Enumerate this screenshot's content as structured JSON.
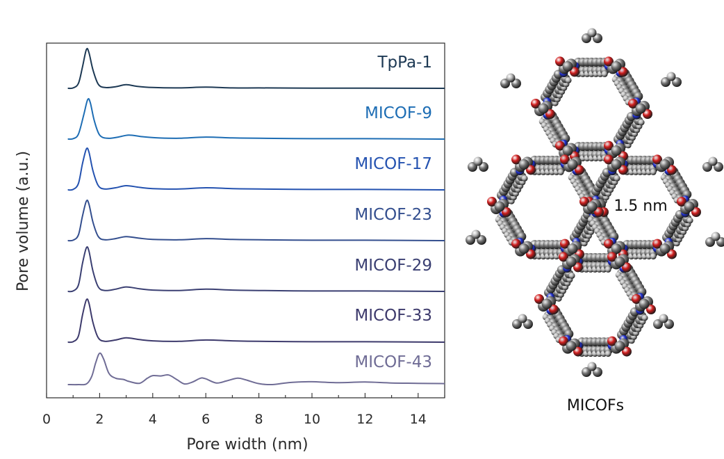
{
  "chart_data": [
    {
      "type": "line",
      "title": "",
      "xlabel": "Pore width (nm)",
      "ylabel": "Pore volume (a.u.)",
      "xlim": [
        0,
        15
      ],
      "x_ticks": [
        0,
        2,
        4,
        6,
        8,
        10,
        12,
        14
      ],
      "y_ticks": [],
      "stacked_offset": true,
      "legend": "inline labels, right of each curve",
      "series": [
        {
          "name": "TpPa-1",
          "color": "#1d3954",
          "points": [
            [
              0.8,
              0.0
            ],
            [
              1.0,
              0.01
            ],
            [
              1.2,
              0.12
            ],
            [
              1.35,
              0.52
            ],
            [
              1.5,
              0.96
            ],
            [
              1.6,
              0.88
            ],
            [
              1.75,
              0.45
            ],
            [
              1.95,
              0.1
            ],
            [
              2.2,
              0.02
            ],
            [
              2.6,
              0.04
            ],
            [
              3.0,
              0.09
            ],
            [
              3.4,
              0.05
            ],
            [
              4.0,
              0.02
            ],
            [
              5.0,
              0.01
            ],
            [
              6.0,
              0.03
            ],
            [
              7.0,
              0.01
            ],
            [
              8.0,
              0.01
            ],
            [
              10.0,
              0.005
            ],
            [
              12.0,
              0.003
            ],
            [
              15.0,
              0.0
            ]
          ]
        },
        {
          "name": "MICOF-9",
          "color": "#1d6db4",
          "points": [
            [
              0.8,
              0.0
            ],
            [
              1.0,
              0.01
            ],
            [
              1.2,
              0.12
            ],
            [
              1.4,
              0.6
            ],
            [
              1.55,
              0.98
            ],
            [
              1.65,
              0.9
            ],
            [
              1.8,
              0.45
            ],
            [
              2.0,
              0.1
            ],
            [
              2.3,
              0.02
            ],
            [
              2.7,
              0.05
            ],
            [
              3.1,
              0.1
            ],
            [
              3.6,
              0.06
            ],
            [
              4.2,
              0.03
            ],
            [
              5.0,
              0.02
            ],
            [
              6.0,
              0.05
            ],
            [
              7.0,
              0.03
            ],
            [
              8.0,
              0.02
            ],
            [
              10.0,
              0.01
            ],
            [
              12.0,
              0.01
            ],
            [
              15.0,
              0.0
            ]
          ]
        },
        {
          "name": "MICOF-17",
          "color": "#2452b0",
          "points": [
            [
              0.8,
              0.0
            ],
            [
              1.0,
              0.01
            ],
            [
              1.2,
              0.15
            ],
            [
              1.35,
              0.62
            ],
            [
              1.5,
              0.98
            ],
            [
              1.6,
              0.9
            ],
            [
              1.75,
              0.45
            ],
            [
              1.95,
              0.1
            ],
            [
              2.2,
              0.02
            ],
            [
              2.6,
              0.05
            ],
            [
              3.0,
              0.1
            ],
            [
              3.5,
              0.06
            ],
            [
              4.0,
              0.03
            ],
            [
              5.0,
              0.02
            ],
            [
              6.0,
              0.05
            ],
            [
              7.0,
              0.03
            ],
            [
              8.0,
              0.02
            ],
            [
              10.0,
              0.01
            ],
            [
              12.0,
              0.01
            ],
            [
              15.0,
              0.0
            ]
          ]
        },
        {
          "name": "MICOF-23",
          "color": "#334e8e",
          "points": [
            [
              0.8,
              0.0
            ],
            [
              1.0,
              0.01
            ],
            [
              1.2,
              0.14
            ],
            [
              1.35,
              0.6
            ],
            [
              1.5,
              0.98
            ],
            [
              1.6,
              0.9
            ],
            [
              1.75,
              0.45
            ],
            [
              1.95,
              0.1
            ],
            [
              2.2,
              0.02
            ],
            [
              2.6,
              0.05
            ],
            [
              3.0,
              0.1
            ],
            [
              3.5,
              0.06
            ],
            [
              4.0,
              0.03
            ],
            [
              5.0,
              0.02
            ],
            [
              6.0,
              0.05
            ],
            [
              7.0,
              0.03
            ],
            [
              8.0,
              0.02
            ],
            [
              10.0,
              0.01
            ],
            [
              12.0,
              0.01
            ],
            [
              15.0,
              0.0
            ]
          ]
        },
        {
          "name": "MICOF-29",
          "color": "#3a3f72",
          "points": [
            [
              0.8,
              0.0
            ],
            [
              1.0,
              0.01
            ],
            [
              1.2,
              0.14
            ],
            [
              1.35,
              0.62
            ],
            [
              1.5,
              0.98
            ],
            [
              1.6,
              0.9
            ],
            [
              1.75,
              0.45
            ],
            [
              1.95,
              0.1
            ],
            [
              2.2,
              0.02
            ],
            [
              2.6,
              0.05
            ],
            [
              3.0,
              0.1
            ],
            [
              3.5,
              0.06
            ],
            [
              4.0,
              0.03
            ],
            [
              5.0,
              0.02
            ],
            [
              6.0,
              0.05
            ],
            [
              7.0,
              0.03
            ],
            [
              8.0,
              0.02
            ],
            [
              10.0,
              0.01
            ],
            [
              12.0,
              0.01
            ],
            [
              15.0,
              0.0
            ]
          ]
        },
        {
          "name": "MICOF-33",
          "color": "#3d3a6c",
          "points": [
            [
              0.8,
              0.0
            ],
            [
              1.0,
              0.01
            ],
            [
              1.2,
              0.14
            ],
            [
              1.35,
              0.62
            ],
            [
              1.5,
              0.98
            ],
            [
              1.6,
              0.9
            ],
            [
              1.75,
              0.45
            ],
            [
              1.95,
              0.1
            ],
            [
              2.2,
              0.02
            ],
            [
              2.6,
              0.05
            ],
            [
              3.0,
              0.1
            ],
            [
              3.5,
              0.06
            ],
            [
              4.0,
              0.03
            ],
            [
              5.0,
              0.02
            ],
            [
              6.0,
              0.05
            ],
            [
              7.0,
              0.03
            ],
            [
              8.0,
              0.02
            ],
            [
              10.0,
              0.01
            ],
            [
              12.0,
              0.01
            ],
            [
              15.0,
              0.0
            ]
          ]
        },
        {
          "name": "MICOF-43",
          "color": "#6f6c95",
          "points": [
            [
              0.8,
              0.0
            ],
            [
              1.2,
              0.0
            ],
            [
              1.5,
              0.02
            ],
            [
              1.7,
              0.25
            ],
            [
              1.85,
              0.68
            ],
            [
              2.0,
              0.98
            ],
            [
              2.15,
              0.8
            ],
            [
              2.35,
              0.35
            ],
            [
              2.6,
              0.2
            ],
            [
              2.9,
              0.16
            ],
            [
              3.1,
              0.1
            ],
            [
              3.5,
              0.04
            ],
            [
              3.8,
              0.2
            ],
            [
              4.0,
              0.28
            ],
            [
              4.3,
              0.27
            ],
            [
              4.6,
              0.3
            ],
            [
              4.9,
              0.16
            ],
            [
              5.2,
              0.02
            ],
            [
              5.5,
              0.08
            ],
            [
              5.8,
              0.2
            ],
            [
              6.0,
              0.18
            ],
            [
              6.4,
              0.05
            ],
            [
              6.8,
              0.12
            ],
            [
              7.2,
              0.2
            ],
            [
              7.5,
              0.15
            ],
            [
              8.0,
              0.03
            ],
            [
              8.5,
              0.0
            ],
            [
              9.0,
              0.05
            ],
            [
              9.5,
              0.08
            ],
            [
              10.0,
              0.09
            ],
            [
              11.0,
              0.06
            ],
            [
              12.0,
              0.08
            ],
            [
              13.0,
              0.05
            ],
            [
              14.0,
              0.04
            ],
            [
              15.0,
              0.03
            ]
          ]
        }
      ]
    }
  ],
  "structure_panel": {
    "pore_label": "1.5 nm",
    "caption": "MICOFs",
    "atom_colors": {
      "carbon": "#7a7a7a",
      "hydrogen": "#b8b8b8",
      "oxygen": "#d01e1e",
      "nitrogen": "#1e2ed0"
    }
  }
}
